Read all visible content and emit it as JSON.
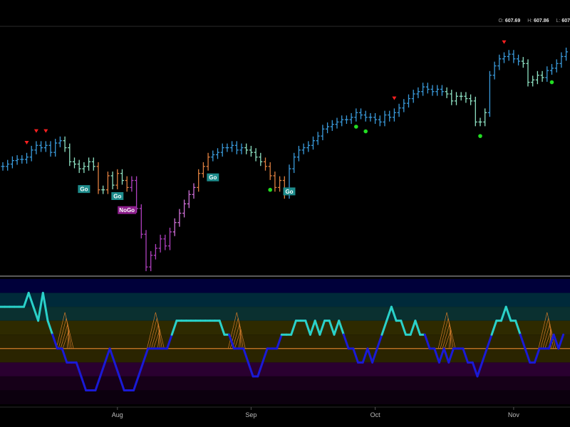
{
  "ohlc_readout": {
    "open_label": "O:",
    "open_value": "607.69",
    "high_label": "H:",
    "high_value": "607.86",
    "low_label": "L:",
    "low_value": "607"
  },
  "colors": {
    "background": "#000000",
    "strong_go": "#3a9bdc",
    "weak_go": "#8fe3c4",
    "weak_nogo": "#e08040",
    "strong_nogo": "#b040c0",
    "go_badge": "#1e8c8c",
    "nogo_badge": "#8c1e8c",
    "trend_end_marker": "#ff2020",
    "go_dot": "#22dd22",
    "oscillator_high": "#2ad1c9",
    "oscillator_low": "#1a1ad6",
    "zero_line": "#d07a2a",
    "squeeze": "#d07a2a"
  },
  "chart_data": [
    {
      "type": "ohlc",
      "series": [
        {
          "name": "price",
          "values": [
            [
              1,
              0.56
            ],
            [
              2,
              0.57
            ],
            [
              3,
              0.585
            ],
            [
              4,
              0.59
            ],
            [
              5,
              0.59
            ],
            [
              6,
              0.6
            ],
            [
              7,
              0.63
            ],
            [
              8,
              0.65
            ],
            [
              9,
              0.64
            ],
            [
              10,
              0.65
            ],
            [
              11,
              0.62
            ],
            [
              12,
              0.66
            ],
            [
              13,
              0.67
            ],
            [
              14,
              0.64
            ],
            [
              15,
              0.58
            ],
            [
              16,
              0.57
            ],
            [
              17,
              0.55
            ],
            [
              18,
              0.56
            ],
            [
              19,
              0.58
            ],
            [
              20,
              0.56
            ],
            [
              21,
              0.46
            ],
            [
              22,
              0.46
            ],
            [
              23,
              0.52
            ],
            [
              24,
              0.48
            ],
            [
              25,
              0.53
            ],
            [
              26,
              0.5
            ],
            [
              27,
              0.47
            ],
            [
              28,
              0.5
            ],
            [
              29,
              0.38
            ],
            [
              30,
              0.27
            ],
            [
              31,
              0.13
            ],
            [
              32,
              0.18
            ],
            [
              33,
              0.21
            ],
            [
              34,
              0.25
            ],
            [
              35,
              0.22
            ],
            [
              36,
              0.28
            ],
            [
              37,
              0.32
            ],
            [
              38,
              0.36
            ],
            [
              39,
              0.4
            ],
            [
              40,
              0.44
            ],
            [
              41,
              0.47
            ],
            [
              42,
              0.53
            ],
            [
              43,
              0.56
            ],
            [
              44,
              0.6
            ],
            [
              45,
              0.61
            ],
            [
              46,
              0.62
            ],
            [
              47,
              0.64
            ],
            [
              48,
              0.64
            ],
            [
              49,
              0.65
            ],
            [
              50,
              0.63
            ],
            [
              51,
              0.64
            ],
            [
              52,
              0.63
            ],
            [
              53,
              0.62
            ],
            [
              54,
              0.6
            ],
            [
              55,
              0.58
            ],
            [
              56,
              0.56
            ],
            [
              57,
              0.52
            ],
            [
              58,
              0.47
            ],
            [
              59,
              0.5
            ],
            [
              60,
              0.44
            ],
            [
              61,
              0.55
            ],
            [
              62,
              0.6
            ],
            [
              63,
              0.63
            ],
            [
              64,
              0.64
            ],
            [
              65,
              0.65
            ],
            [
              66,
              0.67
            ],
            [
              67,
              0.69
            ],
            [
              68,
              0.72
            ],
            [
              69,
              0.73
            ],
            [
              70,
              0.74
            ],
            [
              71,
              0.75
            ],
            [
              72,
              0.76
            ],
            [
              73,
              0.76
            ],
            [
              74,
              0.77
            ],
            [
              75,
              0.79
            ],
            [
              76,
              0.78
            ],
            [
              77,
              0.77
            ],
            [
              78,
              0.77
            ],
            [
              79,
              0.76
            ],
            [
              80,
              0.75
            ],
            [
              81,
              0.78
            ],
            [
              82,
              0.77
            ],
            [
              83,
              0.79
            ],
            [
              84,
              0.81
            ],
            [
              85,
              0.83
            ],
            [
              86,
              0.85
            ],
            [
              87,
              0.87
            ],
            [
              88,
              0.88
            ],
            [
              89,
              0.9
            ],
            [
              90,
              0.89
            ],
            [
              91,
              0.88
            ],
            [
              92,
              0.89
            ],
            [
              93,
              0.88
            ],
            [
              94,
              0.87
            ],
            [
              95,
              0.84
            ],
            [
              96,
              0.86
            ],
            [
              97,
              0.86
            ],
            [
              98,
              0.85
            ],
            [
              99,
              0.84
            ],
            [
              100,
              0.75
            ],
            [
              101,
              0.75
            ],
            [
              102,
              0.79
            ],
            [
              103,
              0.95
            ],
            [
              104,
              0.99
            ],
            [
              105,
              1.02
            ],
            [
              106,
              1.03
            ],
            [
              107,
              1.04
            ],
            [
              108,
              1.02
            ],
            [
              109,
              1.01
            ],
            [
              110,
              1.0
            ],
            [
              111,
              0.92
            ],
            [
              112,
              0.93
            ],
            [
              113,
              0.95
            ],
            [
              114,
              0.94
            ],
            [
              115,
              0.97
            ],
            [
              116,
              0.98
            ],
            [
              117,
              1.0
            ],
            [
              118,
              1.03
            ],
            [
              119,
              1.05
            ]
          ]
        }
      ],
      "badges": [
        {
          "x": 18,
          "text": "Go"
        },
        {
          "x": 25,
          "text": "Go"
        },
        {
          "x": 27,
          "text": "NoGo"
        },
        {
          "x": 45,
          "text": "Go"
        },
        {
          "x": 61,
          "text": "Go"
        }
      ],
      "x_axis_labels": [
        {
          "x": 25,
          "text": "Aug"
        },
        {
          "x": 53,
          "text": "Sep"
        },
        {
          "x": 79,
          "text": "Oct"
        },
        {
          "x": 108,
          "text": "Nov"
        }
      ],
      "ylim": [
        0.1,
        1.15
      ]
    },
    {
      "type": "line",
      "series": [
        {
          "values": [
            3,
            3,
            3,
            3,
            3,
            3,
            4,
            3,
            2,
            4,
            2,
            1,
            0,
            0,
            -1,
            -1,
            -1,
            -2,
            -3,
            -3,
            -3,
            -2,
            -1,
            0,
            -1,
            -2,
            -3,
            -3,
            -3,
            -2,
            -1,
            0,
            0,
            0,
            0,
            0,
            1,
            2,
            2,
            2,
            2,
            2,
            2,
            2,
            2,
            2,
            2,
            1,
            1,
            0,
            0,
            0,
            -1,
            -2,
            -2,
            -1,
            0,
            0,
            0,
            1,
            1,
            1,
            2,
            2,
            2,
            1,
            2,
            1,
            2,
            2,
            1,
            2,
            1,
            0,
            0,
            -1,
            -1,
            0,
            -1,
            0,
            1,
            2,
            3,
            2,
            2,
            1,
            1,
            2,
            1,
            1,
            0,
            0,
            -1,
            0,
            -1,
            0,
            0,
            0,
            -1,
            -1,
            -2,
            -1,
            0,
            1,
            2,
            2,
            3,
            2,
            2,
            1,
            0,
            -1,
            -1,
            0,
            0,
            0,
            1,
            0,
            1
          ]
        }
      ],
      "ylim": [
        -4,
        5
      ],
      "bands": [
        4,
        3,
        2,
        1,
        -1,
        -2,
        -3
      ]
    }
  ]
}
